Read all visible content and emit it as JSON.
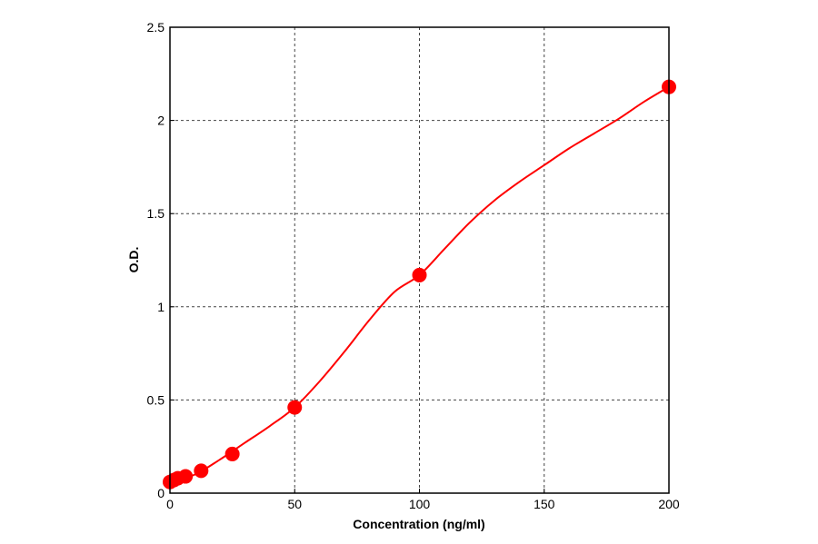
{
  "chart_data": {
    "type": "scatter",
    "title": "",
    "xlabel": "Concentration (ng/ml)",
    "ylabel": "O.D.",
    "xlim": [
      0,
      200
    ],
    "ylim": [
      0,
      2.5
    ],
    "x_ticks": [
      0,
      50,
      100,
      150,
      200
    ],
    "y_ticks": [
      0,
      0.5,
      1,
      1.5,
      2,
      2.5
    ],
    "x_tick_labels": [
      "0",
      "50",
      "100",
      "150",
      "200"
    ],
    "y_tick_labels": [
      "0",
      "0.5",
      "1",
      "1.5",
      "2",
      "2.5"
    ],
    "grid": true,
    "series": [
      {
        "type": "scatter",
        "color": "#ff0000",
        "x": [
          0,
          1.56,
          3.13,
          6.25,
          12.5,
          25,
          50,
          100,
          200
        ],
        "y": [
          0.06,
          0.07,
          0.08,
          0.09,
          0.12,
          0.21,
          0.46,
          1.17,
          2.18
        ]
      },
      {
        "type": "line",
        "color": "#ff0000",
        "x": [
          0,
          10,
          20,
          30,
          40,
          50,
          60,
          70,
          80,
          90,
          100,
          110,
          120,
          130,
          140,
          150,
          160,
          170,
          180,
          190,
          200
        ],
        "y": [
          0.06,
          0.1,
          0.18,
          0.27,
          0.36,
          0.46,
          0.6,
          0.76,
          0.93,
          1.08,
          1.17,
          1.31,
          1.45,
          1.57,
          1.67,
          1.76,
          1.85,
          1.93,
          2.01,
          2.1,
          2.18
        ]
      }
    ]
  }
}
